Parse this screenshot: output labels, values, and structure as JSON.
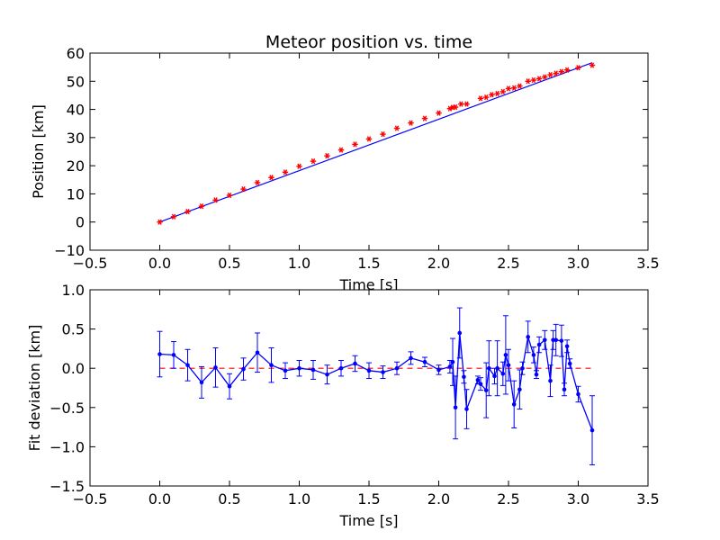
{
  "chart_data": [
    {
      "type": "line",
      "title": "Meteor position vs. time",
      "xlabel": "Time [s]",
      "ylabel": "Position [km]",
      "xlim": [
        -0.5,
        3.5
      ],
      "ylim": [
        -10,
        60
      ],
      "xticks": [
        -0.5,
        0.0,
        0.5,
        1.0,
        1.5,
        2.0,
        2.5,
        3.0,
        3.5
      ],
      "yticks": [
        -10,
        0,
        10,
        20,
        30,
        40,
        50,
        60
      ],
      "xtick_labels": [
        "−0.5",
        "0.0",
        "0.5",
        "1.0",
        "1.5",
        "2.0",
        "2.5",
        "3.0",
        "3.5"
      ],
      "ytick_labels": [
        "−10",
        "0",
        "10",
        "20",
        "30",
        "40",
        "50",
        "60"
      ],
      "grid": false,
      "series": [
        {
          "kind": "fit-line",
          "color": "#0000ff",
          "x": [
            0.0,
            3.1
          ],
          "y": [
            0.0,
            56.6
          ]
        },
        {
          "kind": "measured-points",
          "color": "#ff0000",
          "marker": "star",
          "x": [
            0.0,
            0.1,
            0.2,
            0.3,
            0.4,
            0.5,
            0.6,
            0.7,
            0.8,
            0.9,
            1.0,
            1.1,
            1.2,
            1.3,
            1.4,
            1.5,
            1.6,
            1.7,
            1.8,
            1.9,
            2.0,
            2.08,
            2.1,
            2.12,
            2.16,
            2.2,
            2.3,
            2.34,
            2.38,
            2.42,
            2.46,
            2.5,
            2.54,
            2.58,
            2.64,
            2.68,
            2.72,
            2.76,
            2.8,
            2.84,
            2.88,
            2.92,
            3.0,
            3.1
          ],
          "y": [
            0.0,
            1.9,
            3.7,
            5.6,
            7.8,
            9.5,
            11.7,
            14.0,
            15.8,
            17.7,
            19.8,
            21.6,
            23.5,
            25.6,
            27.6,
            29.5,
            31.2,
            33.3,
            35.2,
            36.8,
            38.7,
            40.3,
            40.7,
            40.8,
            41.9,
            41.9,
            43.9,
            44.3,
            45.2,
            45.6,
            46.3,
            47.4,
            47.6,
            48.3,
            50.0,
            50.4,
            50.9,
            51.5,
            52.3,
            52.8,
            53.4,
            54.0,
            54.8,
            55.7
          ]
        }
      ]
    },
    {
      "type": "line",
      "xlabel": "Time [s]",
      "ylabel": "Fit deviation [km]",
      "xlim": [
        -0.5,
        3.5
      ],
      "ylim": [
        -1.5,
        1.0
      ],
      "xticks": [
        -0.5,
        0.0,
        0.5,
        1.0,
        1.5,
        2.0,
        2.5,
        3.0,
        3.5
      ],
      "yticks": [
        -1.5,
        -1.0,
        -0.5,
        0.0,
        0.5,
        1.0
      ],
      "xtick_labels": [
        "−0.5",
        "0.0",
        "0.5",
        "1.0",
        "1.5",
        "2.0",
        "2.5",
        "3.0",
        "3.5"
      ],
      "ytick_labels": [
        "−1.5",
        "−1.0",
        "−0.5",
        "0.0",
        "0.5",
        "1.0"
      ],
      "grid": false,
      "zero_line": {
        "y": 0.0,
        "color": "#ff0000",
        "style": "dashed"
      },
      "series": [
        {
          "kind": "deviation-with-errorbars",
          "color": "#0000ff",
          "x": [
            0.0,
            0.1,
            0.2,
            0.3,
            0.4,
            0.5,
            0.6,
            0.7,
            0.8,
            0.9,
            1.0,
            1.1,
            1.2,
            1.3,
            1.4,
            1.5,
            1.6,
            1.7,
            1.8,
            1.9,
            2.0,
            2.08,
            2.1,
            2.12,
            2.15,
            2.18,
            2.2,
            2.28,
            2.3,
            2.34,
            2.36,
            2.4,
            2.42,
            2.46,
            2.48,
            2.5,
            2.54,
            2.58,
            2.6,
            2.64,
            2.68,
            2.7,
            2.72,
            2.76,
            2.8,
            2.82,
            2.84,
            2.88,
            2.9,
            2.92,
            2.94,
            3.0,
            3.1
          ],
          "y": [
            0.18,
            0.17,
            0.04,
            -0.18,
            0.01,
            -0.23,
            -0.01,
            0.2,
            0.04,
            -0.03,
            0.0,
            -0.02,
            -0.08,
            0.0,
            0.06,
            -0.03,
            -0.05,
            0.0,
            0.13,
            0.08,
            -0.02,
            0.02,
            0.08,
            -0.5,
            0.45,
            -0.11,
            -0.52,
            -0.15,
            -0.2,
            -0.28,
            0.0,
            -0.1,
            0.0,
            -0.07,
            0.17,
            0.04,
            -0.46,
            -0.27,
            0.0,
            0.4,
            0.17,
            -0.08,
            0.3,
            0.36,
            -0.16,
            0.36,
            0.36,
            0.35,
            -0.27,
            0.28,
            0.06,
            -0.33,
            -0.79
          ],
          "err": [
            0.29,
            0.17,
            0.2,
            0.2,
            0.25,
            0.16,
            0.14,
            0.25,
            0.22,
            0.1,
            0.1,
            0.12,
            0.12,
            0.1,
            0.1,
            0.1,
            0.08,
            0.08,
            0.08,
            0.06,
            0.06,
            0.08,
            0.3,
            0.4,
            0.32,
            0.08,
            0.25,
            0.05,
            0.08,
            0.35,
            0.35,
            0.1,
            0.35,
            0.15,
            0.5,
            0.2,
            0.3,
            0.25,
            0.08,
            0.2,
            0.1,
            0.05,
            0.1,
            0.12,
            0.2,
            0.12,
            0.2,
            0.2,
            0.08,
            0.08,
            0.06,
            0.1,
            0.44
          ]
        }
      ]
    }
  ]
}
